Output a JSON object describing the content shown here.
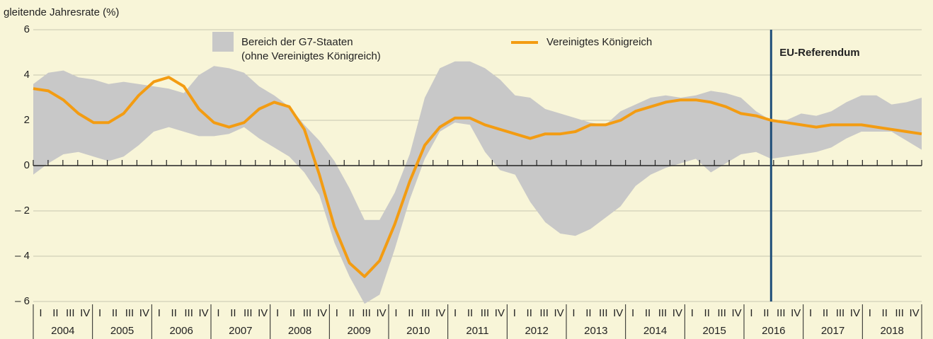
{
  "chart_data": {
    "type": "line",
    "ylabel": "gleitende Jahresrate (%)",
    "ylim": [
      -6,
      6
    ],
    "yticks": [
      6,
      4,
      2,
      0,
      {
        "value": -2,
        "label": "– 2"
      },
      {
        "value": -4,
        "label": "– 4"
      },
      {
        "value": -6,
        "label": "– 6"
      }
    ],
    "grid": true,
    "years": [
      "2004",
      "2005",
      "2006",
      "2007",
      "2008",
      "2009",
      "2010",
      "2011",
      "2012",
      "2013",
      "2014",
      "2015",
      "2016",
      "2017",
      "2018"
    ],
    "quarters": [
      "I",
      "II",
      "III",
      "IV"
    ],
    "band": {
      "name": [
        "Bereich der G7-Staaten",
        "(ohne Vereinigtes Königreich)"
      ],
      "color": "#c8c8c8",
      "upper": [
        3.6,
        4.1,
        4.2,
        3.9,
        3.8,
        3.6,
        3.7,
        3.6,
        3.5,
        3.4,
        3.2,
        4.0,
        4.4,
        4.3,
        4.1,
        3.5,
        3.1,
        2.6,
        1.8,
        1.1,
        0.2,
        -1.0,
        -2.4,
        -2.4,
        -1.2,
        0.5,
        3.0,
        4.3,
        4.6,
        4.6,
        4.3,
        3.8,
        3.1,
        3.0,
        2.5,
        2.3,
        2.1,
        1.9,
        1.8,
        2.4,
        2.7,
        3.0,
        3.1,
        3.0,
        3.1,
        3.3,
        3.2,
        3.0,
        2.4,
        2.0,
        2.0,
        2.3,
        2.2,
        2.4,
        2.8,
        3.1,
        3.1,
        2.7,
        2.8,
        3.0
      ],
      "lower": [
        -0.4,
        0.1,
        0.5,
        0.6,
        0.4,
        0.2,
        0.4,
        0.9,
        1.5,
        1.7,
        1.5,
        1.3,
        1.3,
        1.4,
        1.7,
        1.2,
        0.8,
        0.4,
        -0.3,
        -1.3,
        -3.4,
        -4.9,
        -6.1,
        -5.7,
        -3.7,
        -1.5,
        0.3,
        1.5,
        1.9,
        1.8,
        0.6,
        -0.2,
        -0.4,
        -1.6,
        -2.5,
        -3.0,
        -3.1,
        -2.8,
        -2.3,
        -1.8,
        -0.9,
        -0.4,
        -0.1,
        0.1,
        0.3,
        -0.3,
        0.1,
        0.5,
        0.6,
        0.3,
        0.4,
        0.5,
        0.6,
        0.8,
        1.2,
        1.5,
        1.5,
        1.5,
        1.1,
        0.7
      ]
    },
    "series": [
      {
        "name": "Vereinigtes Königreich",
        "color": "#f39c12",
        "values": [
          3.4,
          3.3,
          2.9,
          2.3,
          1.9,
          1.9,
          2.3,
          3.1,
          3.7,
          3.9,
          3.5,
          2.5,
          1.9,
          1.7,
          1.9,
          2.5,
          2.8,
          2.6,
          1.6,
          -0.4,
          -2.7,
          -4.3,
          -4.9,
          -4.2,
          -2.6,
          -0.7,
          0.9,
          1.7,
          2.1,
          2.1,
          1.8,
          1.6,
          1.4,
          1.2,
          1.4,
          1.4,
          1.5,
          1.8,
          1.8,
          2.0,
          2.4,
          2.6,
          2.8,
          2.9,
          2.9,
          2.8,
          2.6,
          2.3,
          2.2,
          2.0,
          1.9,
          1.8,
          1.7,
          1.8,
          1.8,
          1.8,
          1.7,
          1.6,
          1.5,
          1.4
        ]
      }
    ],
    "annotations": [
      {
        "label": "EU-Referendum",
        "index": 49,
        "color": "#1f4e79"
      }
    ]
  }
}
